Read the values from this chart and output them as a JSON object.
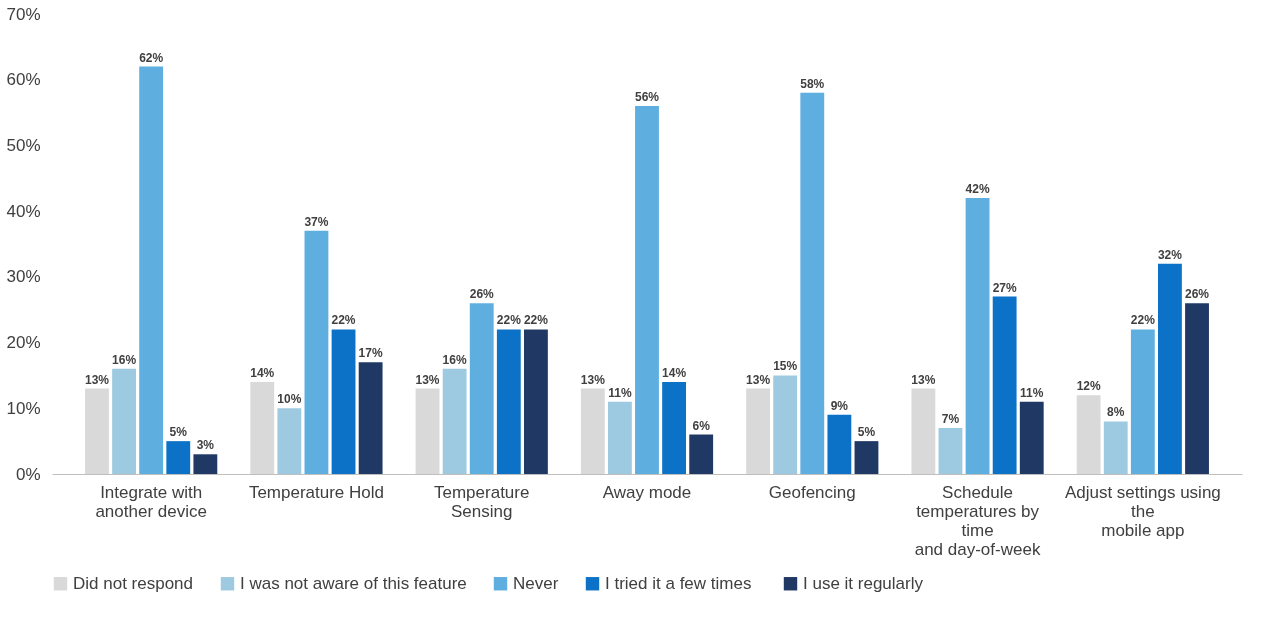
{
  "chart_data": {
    "type": "bar",
    "categories": [
      "Integrate with\nanother device",
      "Temperature Hold",
      "Temperature\nSensing",
      "Away mode",
      "Geofencing",
      "Schedule\ntemperatures by\ntime\nand day-of-week",
      "Adjust settings using\nthe\nmobile app"
    ],
    "series": [
      {
        "name": "Did not respond",
        "color": "#d9d9d9",
        "values": [
          13,
          14,
          13,
          13,
          13,
          13,
          12
        ],
        "value_labels": [
          "13%",
          "14%",
          "13%",
          "13%",
          "13%",
          "13%",
          "12%"
        ]
      },
      {
        "name": "I was not aware of this feature",
        "color": "#9ecae1",
        "values": [
          16,
          10,
          16,
          11,
          15,
          7,
          8
        ],
        "value_labels": [
          "16%",
          "10%",
          "16%",
          "11%",
          "15%",
          "7%",
          "8%"
        ]
      },
      {
        "name": "Never",
        "color": "#5faee0",
        "values": [
          62,
          37,
          26,
          56,
          58,
          42,
          22
        ],
        "value_labels": [
          "62%",
          "37%",
          "26%",
          "56%",
          "58%",
          "42%",
          "22%"
        ]
      },
      {
        "name": "I tried it a few  times",
        "color": "#0b72c7",
        "values": [
          5,
          22,
          22,
          14,
          9,
          27,
          32
        ],
        "value_labels": [
          "5%",
          "22%",
          "22%",
          "14%",
          "9%",
          "27%",
          "32%"
        ]
      },
      {
        "name": "I use it regularly",
        "color": "#1f3864",
        "values": [
          3,
          17,
          22,
          6,
          5,
          11,
          26
        ],
        "value_labels": [
          "3%",
          "17%",
          "22%",
          "6%",
          "5%",
          "11%",
          "26%"
        ]
      }
    ],
    "ylim": [
      0,
      70
    ],
    "yticks": [
      {
        "value": 0,
        "label": "0%"
      },
      {
        "value": 10,
        "label": "10%"
      },
      {
        "value": 20,
        "label": "20%"
      },
      {
        "value": 30,
        "label": "30%"
      },
      {
        "value": 40,
        "label": "40%"
      },
      {
        "value": 50,
        "label": "50%"
      },
      {
        "value": 60,
        "label": "60%"
      },
      {
        "value": 70,
        "label": "70%"
      }
    ],
    "grid": false,
    "legend": "bottom"
  }
}
